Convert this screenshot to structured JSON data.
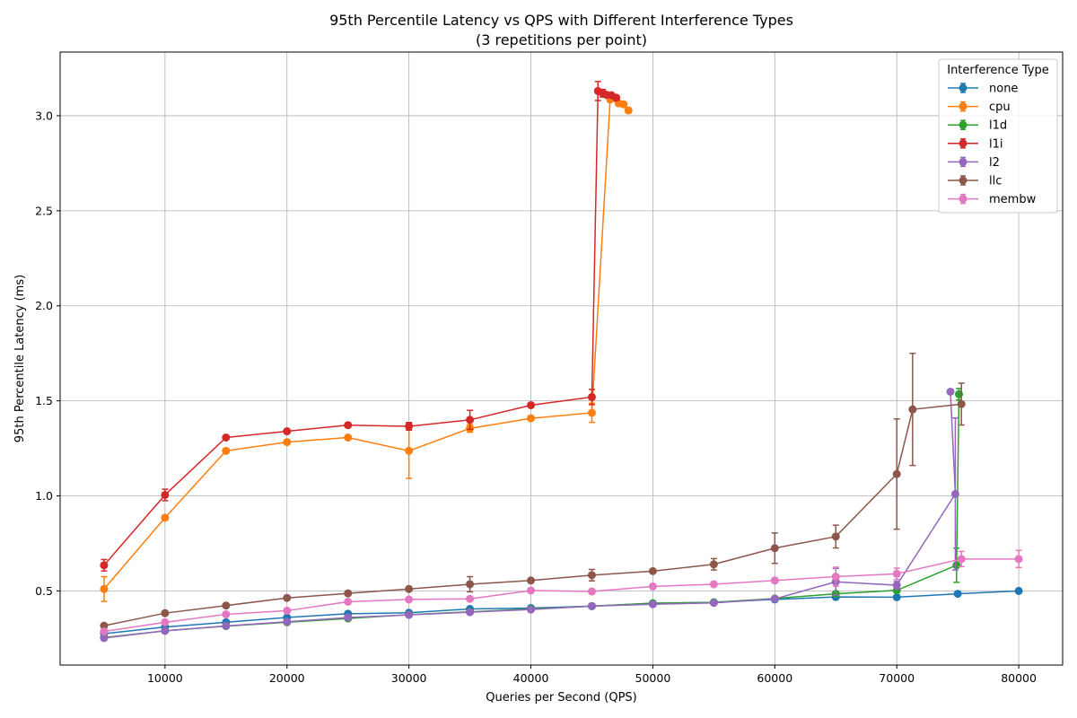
{
  "chart_data": {
    "type": "line",
    "title": "95th Percentile Latency vs QPS with Different Interference Types",
    "subtitle": "(3 repetitions per point)",
    "xlabel": "Queries per Second (QPS)",
    "ylabel": "95th Percentile Latency (ms)",
    "xlim": [
      1400,
      83600
    ],
    "ylim": [
      0.11,
      3.335
    ],
    "xticks": [
      10000,
      20000,
      30000,
      40000,
      50000,
      60000,
      70000,
      80000
    ],
    "xtick_labels": [
      "10000",
      "20000",
      "30000",
      "40000",
      "50000",
      "60000",
      "70000",
      "80000"
    ],
    "yticks": [
      0.5,
      1.0,
      1.5,
      2.0,
      2.5,
      3.0
    ],
    "ytick_labels": [
      "0.5",
      "1.0",
      "1.5",
      "2.0",
      "2.5",
      "3.0"
    ],
    "grid": true,
    "legend": {
      "title": "Interference Type",
      "position": "top-right"
    },
    "series": [
      {
        "name": "none",
        "color": "#1f77b4",
        "points": [
          [
            5000,
            0.275
          ],
          [
            10000,
            0.31
          ],
          [
            15000,
            0.335
          ],
          [
            20000,
            0.36
          ],
          [
            25000,
            0.38
          ],
          [
            30000,
            0.385
          ],
          [
            35000,
            0.405
          ],
          [
            40000,
            0.41
          ],
          [
            45000,
            0.42
          ],
          [
            50000,
            0.435
          ],
          [
            55000,
            0.44
          ],
          [
            60000,
            0.455
          ],
          [
            65000,
            0.468
          ],
          [
            70000,
            0.467
          ],
          [
            75000,
            0.485
          ],
          [
            80000,
            0.5
          ]
        ],
        "errors": [
          0.005,
          0.005,
          0.005,
          0.005,
          0.005,
          0.005,
          0.005,
          0.005,
          0.005,
          0.005,
          0.005,
          0.005,
          0.005,
          0.005,
          0.005,
          0.005
        ]
      },
      {
        "name": "cpu",
        "color": "#ff7f0e",
        "points": [
          [
            5000,
            0.51
          ],
          [
            10000,
            0.885
          ],
          [
            15000,
            1.237
          ],
          [
            20000,
            1.283
          ],
          [
            25000,
            1.307
          ],
          [
            30000,
            1.237
          ],
          [
            35000,
            1.355
          ],
          [
            40000,
            1.408
          ],
          [
            45000,
            1.437
          ],
          [
            46500,
            3.085
          ],
          [
            47200,
            3.065
          ],
          [
            47600,
            3.06
          ],
          [
            48000,
            3.028
          ]
        ],
        "errors": [
          0.065,
          0.01,
          0.01,
          0.01,
          0.01,
          0.145,
          0.02,
          0.01,
          0.05,
          0.01,
          0.01,
          0.01,
          0.01
        ]
      },
      {
        "name": "l1d",
        "color": "#2ca02c",
        "points": [
          [
            5000,
            0.255
          ],
          [
            10000,
            0.29
          ],
          [
            15000,
            0.315
          ],
          [
            20000,
            0.335
          ],
          [
            25000,
            0.355
          ],
          [
            30000,
            0.375
          ],
          [
            35000,
            0.39
          ],
          [
            40000,
            0.405
          ],
          [
            45000,
            0.42
          ],
          [
            50000,
            0.435
          ],
          [
            55000,
            0.44
          ],
          [
            60000,
            0.46
          ],
          [
            65000,
            0.485
          ],
          [
            70000,
            0.503
          ],
          [
            74900,
            0.635
          ],
          [
            75100,
            1.535
          ]
        ],
        "errors": [
          0.005,
          0.005,
          0.005,
          0.005,
          0.005,
          0.005,
          0.005,
          0.005,
          0.005,
          0.005,
          0.005,
          0.005,
          0.01,
          0.01,
          0.09,
          0.03
        ]
      },
      {
        "name": "l1i",
        "color": "#d62728",
        "points": [
          [
            5000,
            0.635
          ],
          [
            10000,
            1.005
          ],
          [
            15000,
            1.307
          ],
          [
            20000,
            1.34
          ],
          [
            25000,
            1.372
          ],
          [
            30000,
            1.366
          ],
          [
            35000,
            1.4
          ],
          [
            40000,
            1.477
          ],
          [
            45000,
            1.52
          ],
          [
            45500,
            3.13
          ],
          [
            45900,
            3.118
          ],
          [
            46200,
            3.11
          ],
          [
            46600,
            3.108
          ],
          [
            47000,
            3.095
          ]
        ],
        "errors": [
          0.03,
          0.03,
          0.01,
          0.01,
          0.01,
          0.02,
          0.05,
          0.01,
          0.04,
          0.05,
          0.02,
          0.01,
          0.01,
          0.01
        ]
      },
      {
        "name": "l2",
        "color": "#9467bd",
        "points": [
          [
            5000,
            0.252
          ],
          [
            10000,
            0.29
          ],
          [
            15000,
            0.316
          ],
          [
            20000,
            0.338
          ],
          [
            25000,
            0.36
          ],
          [
            30000,
            0.374
          ],
          [
            35000,
            0.388
          ],
          [
            40000,
            0.402
          ],
          [
            45000,
            0.42
          ],
          [
            50000,
            0.43
          ],
          [
            55000,
            0.437
          ],
          [
            60000,
            0.458
          ],
          [
            65000,
            0.548
          ],
          [
            70000,
            0.53
          ],
          [
            74800,
            1.01
          ],
          [
            74400,
            1.548
          ]
        ],
        "errors": [
          0.005,
          0.005,
          0.005,
          0.005,
          0.005,
          0.005,
          0.005,
          0.005,
          0.005,
          0.005,
          0.005,
          0.005,
          0.07,
          0.02,
          0.4,
          0.01
        ]
      },
      {
        "name": "llc",
        "color": "#8c564b",
        "points": [
          [
            5000,
            0.317
          ],
          [
            10000,
            0.383
          ],
          [
            15000,
            0.423
          ],
          [
            20000,
            0.463
          ],
          [
            25000,
            0.487
          ],
          [
            30000,
            0.51
          ],
          [
            35000,
            0.535
          ],
          [
            40000,
            0.555
          ],
          [
            45000,
            0.583
          ],
          [
            50000,
            0.604
          ],
          [
            55000,
            0.64
          ],
          [
            60000,
            0.725
          ],
          [
            65000,
            0.786
          ],
          [
            70000,
            1.115
          ],
          [
            71300,
            1.455
          ],
          [
            75300,
            1.483
          ]
        ],
        "errors": [
          0.005,
          0.005,
          0.005,
          0.005,
          0.01,
          0.005,
          0.04,
          0.005,
          0.03,
          0.005,
          0.03,
          0.08,
          0.06,
          0.29,
          0.295,
          0.11
        ]
      },
      {
        "name": "membw",
        "color": "#e377c2",
        "points": [
          [
            5000,
            0.287
          ],
          [
            10000,
            0.335
          ],
          [
            15000,
            0.377
          ],
          [
            20000,
            0.396
          ],
          [
            25000,
            0.443
          ],
          [
            30000,
            0.455
          ],
          [
            35000,
            0.458
          ],
          [
            40000,
            0.502
          ],
          [
            45000,
            0.497
          ],
          [
            50000,
            0.524
          ],
          [
            55000,
            0.535
          ],
          [
            60000,
            0.555
          ],
          [
            65000,
            0.575
          ],
          [
            70000,
            0.59
          ],
          [
            75300,
            0.668
          ],
          [
            80000,
            0.668
          ]
        ],
        "errors": [
          0.005,
          0.005,
          0.005,
          0.005,
          0.005,
          0.005,
          0.005,
          0.01,
          0.01,
          0.005,
          0.005,
          0.01,
          0.05,
          0.03,
          0.04,
          0.045
        ]
      }
    ]
  }
}
